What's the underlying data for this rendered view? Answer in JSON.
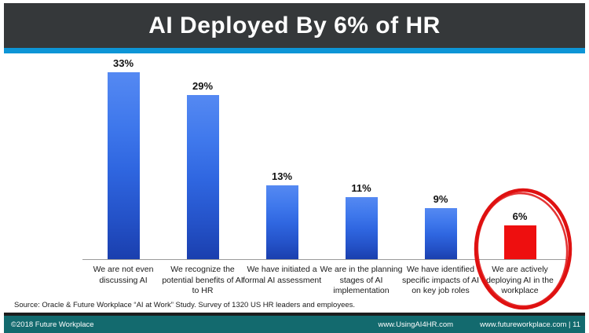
{
  "slide": {
    "title": "AI Deployed By 6% of HR",
    "source_note": "Source: Oracle & Future Workplace “AI at Work” Study. Survey of 1320 US HR leaders and employees.",
    "footer": {
      "copyright": "©2018 Future Workplace",
      "link_usingai4hr": "www.UsingAI4HR.com",
      "link_futureworkplace": "www.futureworkplace.com | 11"
    }
  },
  "chart_data": {
    "type": "bar",
    "title": "AI Deployed By 6% of HR",
    "categories": [
      "We are not even discussing AI",
      "We recognize the potential benefits of AI to HR",
      "We have initiated a formal AI assessment",
      "We are in the planning stages of AI implementation",
      "We have identified specific impacts of AI on key job roles",
      "We are actively deploying AI in the workplace"
    ],
    "values": [
      33,
      29,
      13,
      11,
      9,
      6
    ],
    "value_labels": [
      "33%",
      "29%",
      "13%",
      "11%",
      "9%",
      "6%"
    ],
    "highlight_index": 5,
    "highlight_annotation": "hand-drawn red ellipse circling the last bar and its label",
    "xlabel": "",
    "ylabel": "",
    "ylim": [
      0,
      35
    ],
    "grid": false,
    "legend": false,
    "data_labels": "above bars",
    "bar_color_default": "blue gradient",
    "bar_color_highlight": "red"
  },
  "colors": {
    "header_bg": "#35383a",
    "accent_blue": "#0d95d6",
    "footer_teal": "#136a6e",
    "footer_strip": "#1d1d1d",
    "bar_blue_top": "#5589f2",
    "bar_blue_bottom": "#1a3fae",
    "bar_red": "#ee0f0f",
    "annotation_red": "#df1111",
    "axis_line": "#9a9a9a",
    "title_text": "#ffffff"
  }
}
